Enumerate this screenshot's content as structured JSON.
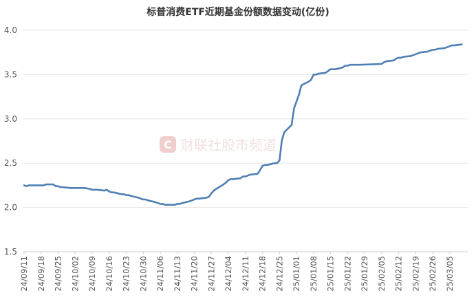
{
  "chart_data": {
    "type": "line",
    "title": "标普消费ETF近期基金份额数据变动(亿份)",
    "ylim": [
      1.5,
      4.0
    ],
    "yticks": [
      1.5,
      2.0,
      2.5,
      3.0,
      3.5,
      4.0
    ],
    "ytick_labels": [
      "1.5",
      "2.0",
      "2.5",
      "3.0",
      "3.5",
      "4.0"
    ],
    "x_tick_labels": [
      "24/09/11",
      "24/09/18",
      "24/09/25",
      "24/10/02",
      "24/10/09",
      "24/10/16",
      "24/10/23",
      "24/10/30",
      "24/11/06",
      "24/11/13",
      "24/11/20",
      "24/11/27",
      "24/12/04",
      "24/12/11",
      "24/12/18",
      "24/12/25",
      "25/01/01",
      "25/01/08",
      "25/01/15",
      "25/01/22",
      "25/01/29",
      "25/02/05",
      "25/02/12",
      "25/02/19",
      "25/02/26",
      "25/03/05"
    ],
    "grid": true,
    "legend": "none",
    "series": [
      {
        "color": "#4f7fb5",
        "points": [
          [
            "24/09/11",
            2.25
          ],
          [
            "24/09/12",
            2.24
          ],
          [
            "24/09/13",
            2.25
          ],
          [
            "24/09/16",
            2.25
          ],
          [
            "24/09/17",
            2.25
          ],
          [
            "24/09/18",
            2.25
          ],
          [
            "24/09/19",
            2.25
          ],
          [
            "24/09/20",
            2.26
          ],
          [
            "24/09/23",
            2.26
          ],
          [
            "24/09/24",
            2.24
          ],
          [
            "24/09/25",
            2.24
          ],
          [
            "24/09/26",
            2.23
          ],
          [
            "24/09/27",
            2.23
          ],
          [
            "24/09/30",
            2.22
          ],
          [
            "24/10/02",
            2.22
          ],
          [
            "24/10/04",
            2.22
          ],
          [
            "24/10/06",
            2.22
          ],
          [
            "24/10/08",
            2.21
          ],
          [
            "24/10/09",
            2.2
          ],
          [
            "24/10/10",
            2.2
          ],
          [
            "24/10/11",
            2.2
          ],
          [
            "24/10/14",
            2.19
          ],
          [
            "24/10/15",
            2.2
          ],
          [
            "24/10/16",
            2.18
          ],
          [
            "24/10/17",
            2.17
          ],
          [
            "24/10/18",
            2.17
          ],
          [
            "24/10/21",
            2.15
          ],
          [
            "24/10/22",
            2.15
          ],
          [
            "24/10/23",
            2.14
          ],
          [
            "24/10/24",
            2.14
          ],
          [
            "24/10/25",
            2.13
          ],
          [
            "24/10/28",
            2.11
          ],
          [
            "24/10/29",
            2.1
          ],
          [
            "24/10/30",
            2.09
          ],
          [
            "24/10/31",
            2.09
          ],
          [
            "24/11/01",
            2.08
          ],
          [
            "24/11/04",
            2.06
          ],
          [
            "24/11/05",
            2.05
          ],
          [
            "24/11/06",
            2.04
          ],
          [
            "24/11/07",
            2.04
          ],
          [
            "24/11/08",
            2.03
          ],
          [
            "24/11/11",
            2.03
          ],
          [
            "24/11/12",
            2.03
          ],
          [
            "24/11/13",
            2.04
          ],
          [
            "24/11/14",
            2.04
          ],
          [
            "24/11/15",
            2.05
          ],
          [
            "24/11/18",
            2.07
          ],
          [
            "24/11/19",
            2.08
          ],
          [
            "24/11/20",
            2.09
          ],
          [
            "24/11/21",
            2.1
          ],
          [
            "24/11/22",
            2.1
          ],
          [
            "24/11/25",
            2.11
          ],
          [
            "24/11/26",
            2.12
          ],
          [
            "24/11/27",
            2.16
          ],
          [
            "24/11/28",
            2.19
          ],
          [
            "24/11/29",
            2.21
          ],
          [
            "24/12/02",
            2.26
          ],
          [
            "24/12/03",
            2.28
          ],
          [
            "24/12/04",
            2.31
          ],
          [
            "24/12/05",
            2.32
          ],
          [
            "24/12/06",
            2.32
          ],
          [
            "24/12/09",
            2.33
          ],
          [
            "24/12/10",
            2.35
          ],
          [
            "24/12/11",
            2.35
          ],
          [
            "24/12/12",
            2.36
          ],
          [
            "24/12/13",
            2.37
          ],
          [
            "24/12/16",
            2.38
          ],
          [
            "24/12/17",
            2.42
          ],
          [
            "24/12/18",
            2.47
          ],
          [
            "24/12/19",
            2.48
          ],
          [
            "24/12/20",
            2.48
          ],
          [
            "24/12/23",
            2.5
          ],
          [
            "24/12/24",
            2.5
          ],
          [
            "24/12/25",
            2.53
          ],
          [
            "24/12/26",
            2.76
          ],
          [
            "24/12/27",
            2.85
          ],
          [
            "24/12/30",
            2.93
          ],
          [
            "24/12/31",
            3.12
          ],
          [
            "25/01/02",
            3.27
          ],
          [
            "25/01/03",
            3.38
          ],
          [
            "25/01/06",
            3.42
          ],
          [
            "25/01/07",
            3.44
          ],
          [
            "25/01/08",
            3.5
          ],
          [
            "25/01/09",
            3.5
          ],
          [
            "25/01/10",
            3.51
          ],
          [
            "25/01/13",
            3.52
          ],
          [
            "25/01/14",
            3.54
          ],
          [
            "25/01/15",
            3.56
          ],
          [
            "25/01/16",
            3.56
          ],
          [
            "25/01/17",
            3.56
          ],
          [
            "25/01/20",
            3.58
          ],
          [
            "25/01/21",
            3.6
          ],
          [
            "25/01/22",
            3.6
          ],
          [
            "25/01/23",
            3.61
          ],
          [
            "25/01/24",
            3.61
          ],
          [
            "25/01/27",
            3.61
          ],
          [
            "25/02/05",
            3.62
          ],
          [
            "25/02/06",
            3.64
          ],
          [
            "25/02/07",
            3.65
          ],
          [
            "25/02/10",
            3.66
          ],
          [
            "25/02/11",
            3.68
          ],
          [
            "25/02/12",
            3.69
          ],
          [
            "25/02/13",
            3.69
          ],
          [
            "25/02/14",
            3.7
          ],
          [
            "25/02/17",
            3.71
          ],
          [
            "25/02/18",
            3.72
          ],
          [
            "25/02/19",
            3.73
          ],
          [
            "25/02/20",
            3.74
          ],
          [
            "25/02/21",
            3.75
          ],
          [
            "25/02/24",
            3.76
          ],
          [
            "25/02/25",
            3.77
          ],
          [
            "25/02/26",
            3.78
          ],
          [
            "25/02/27",
            3.78
          ],
          [
            "25/02/28",
            3.79
          ],
          [
            "25/03/03",
            3.8
          ],
          [
            "25/03/04",
            3.81
          ],
          [
            "25/03/05",
            3.82
          ],
          [
            "25/03/06",
            3.83
          ],
          [
            "25/03/07",
            3.83
          ],
          [
            "25/03/10",
            3.84
          ]
        ]
      }
    ]
  },
  "watermark": {
    "logo_letter": "C",
    "text": "财联社股市频道",
    "color": "#e07070"
  }
}
